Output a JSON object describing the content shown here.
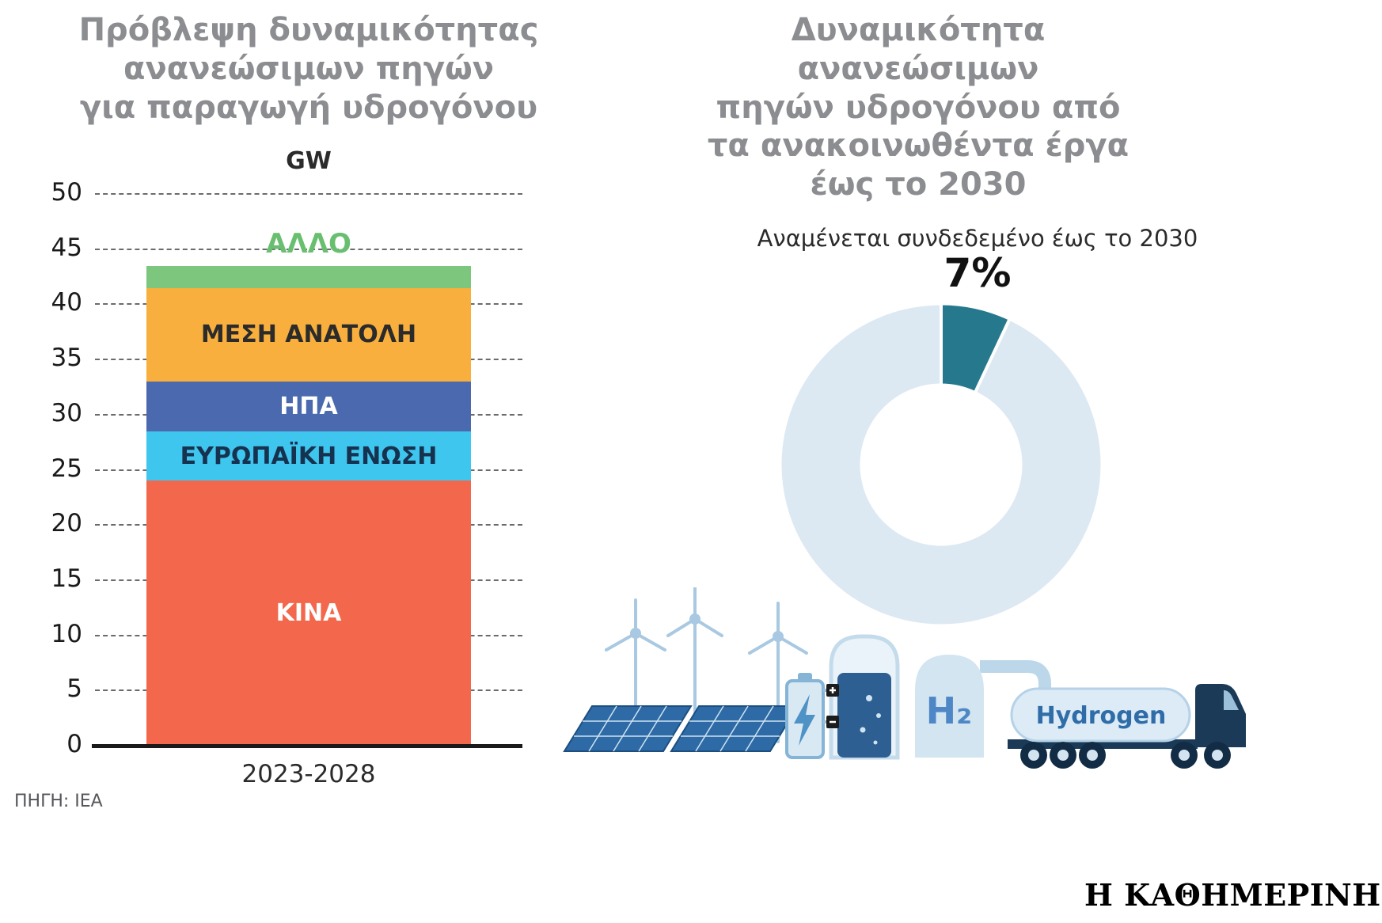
{
  "page": {
    "source": "ΠΗΓΗ: ΙΕΑ",
    "masthead": "Η ΚΑΘΗΜΕΡΙΝΗ"
  },
  "left_chart": {
    "title_lines": [
      "Πρόβλεψη δυναμικότητας",
      "ανανεώσιμων πηγών",
      "για παραγωγή υδρογόνου"
    ],
    "unit_label": "GW",
    "x_label": "2023-2028"
  },
  "right_chart": {
    "title_lines": [
      "Δυναμικότητα ανανεώσιμων",
      "πηγών υδρογόνου από",
      "τα ανακοινωθέντα έργα",
      "έως το 2030"
    ],
    "subtitle": "Αναμένεται συνδεδεμένο έως το 2030",
    "percent_label": "7%"
  },
  "illustration": {
    "h2_label": "H₂",
    "truck_label": "Hydrogen"
  },
  "chart_data": [
    {
      "type": "bar",
      "stacked": true,
      "title": "Πρόβλεψη δυναμικότητας ανανεώσιμων πηγών για παραγωγή υδρογόνου",
      "ylabel": "GW",
      "categories": [
        "2023-2028"
      ],
      "series": [
        {
          "name": "ΚΙΝΑ",
          "values": [
            24
          ],
          "color": "#f3684c",
          "text_color": "#ffffff",
          "label_position": "inside"
        },
        {
          "name": "ΕΥΡΩΠΑΪΚΗ ΕΝΩΣΗ",
          "values": [
            4.5
          ],
          "color": "#3fc6ef",
          "text_color": "#16324f",
          "label_position": "inside"
        },
        {
          "name": "ΗΠΑ",
          "values": [
            4.5
          ],
          "color": "#4a69ae",
          "text_color": "#ffffff",
          "label_position": "inside"
        },
        {
          "name": "ΜΕΣΗ ΑΝΑΤΟΛΗ",
          "values": [
            8.5
          ],
          "color": "#f9af3d",
          "text_color": "#2b2b2b",
          "label_position": "inside"
        },
        {
          "name": "ΑΛΛΟ",
          "values": [
            2
          ],
          "color": "#7cc77d",
          "text_color": "#69bf6f",
          "label_position": "above"
        }
      ],
      "ylim": [
        0,
        50
      ],
      "ytick_step": 5,
      "grid": "dashed-horizontal"
    },
    {
      "type": "pie",
      "donut": true,
      "title": "Δυναμικότητα ανανεώσιμων πηγών υδρογόνου από τα ανακοινωθέντα έργα έως το 2030",
      "annotation": "Αναμένεται συνδεδεμένο έως το 2030",
      "slices": [
        {
          "label": "Αναμένεται συνδεδεμένο έως το 2030",
          "value": 7,
          "color": "#26798d"
        },
        {
          "label": "",
          "value": 93,
          "color": "#dde9f2"
        }
      ],
      "start_angle_deg": 0,
      "direction": "clockwise",
      "legend": "none"
    }
  ]
}
